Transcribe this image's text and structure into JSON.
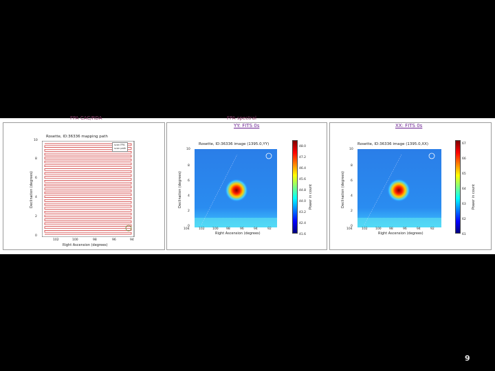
{
  "tabs": [
    "FPA CAC/RDA",
    "FPA spectral"
  ],
  "panel1": {
    "title": "Rosette, ID:36336 mapping path",
    "xlabel": "Right Ascension (degrees)",
    "ylabel": "Declination (degrees)",
    "xticks": [
      "102",
      "100",
      "98",
      "96",
      "94"
    ],
    "yticks": [
      "0",
      "2",
      "4",
      "6",
      "8",
      "10"
    ],
    "legend": [
      "scan FPA",
      "scan path"
    ]
  },
  "panel2": {
    "link": "YY: FITS 0s",
    "title": "Rosette, ID:36336 image (1395.0,YY)",
    "xlabel": "Right Ascension (degrees)",
    "ylabel": "Declination (degrees)",
    "xticks": [
      "104",
      "102",
      "100",
      "98",
      "96",
      "94",
      "92"
    ],
    "yticks": [
      "0",
      "2",
      "4",
      "6",
      "8",
      "10"
    ],
    "cbar_label": "Power in count",
    "cbar_ticks": [
      "48.0",
      "47.2",
      "46.4",
      "45.6",
      "44.8",
      "44.0",
      "43.2",
      "42.4",
      "41.6"
    ]
  },
  "panel3": {
    "link": "XX: FITS 0s",
    "title": "Rosette, ID:36336 image (1395.0,XX)",
    "xlabel": "Right Ascension (degrees)",
    "ylabel": "Declination (degrees)",
    "xticks": [
      "104",
      "102",
      "100",
      "98",
      "96",
      "94",
      "92"
    ],
    "yticks": [
      "0",
      "2",
      "4",
      "6",
      "8",
      "10"
    ],
    "cbar_label": "Power in count",
    "cbar_ticks": [
      "67",
      "66",
      "65",
      "64",
      "63",
      "62",
      "61"
    ]
  },
  "page_number": "9",
  "colors": {
    "background": "#000000",
    "scan_line": "#cc2222",
    "hotspot": "#ff2000"
  }
}
